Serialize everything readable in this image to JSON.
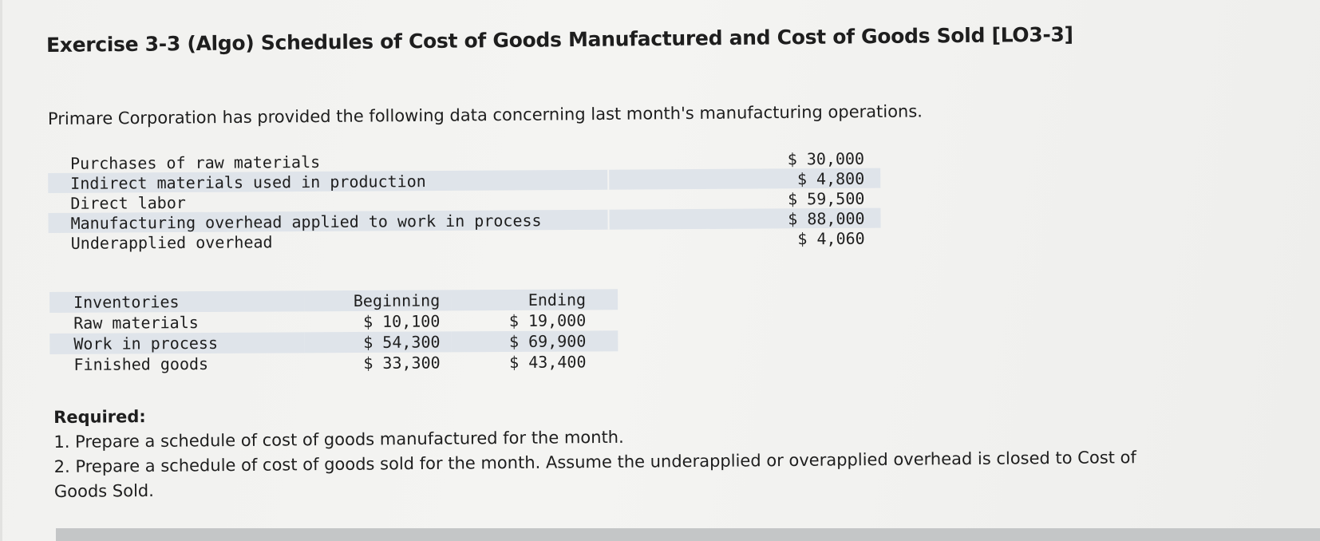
{
  "title": "Exercise 3-3 (Algo) Schedules of Cost of Goods Manufactured and Cost of Goods Sold [LO3-3]",
  "intro": "Primare Corporation has provided the following data concerning last month's manufacturing operations.",
  "data_rows": [
    {
      "label": "Purchases of raw materials",
      "amount": "$ 30,000"
    },
    {
      "label": "Indirect materials used in production",
      "amount": "$ 4,800"
    },
    {
      "label": "Direct labor",
      "amount": "$ 59,500"
    },
    {
      "label": "Manufacturing overhead applied to work in process",
      "amount": "$ 88,000"
    },
    {
      "label": "Underapplied overhead",
      "amount": "$ 4,060"
    }
  ],
  "inventories": {
    "headers": {
      "label": "Inventories",
      "beginning": "Beginning",
      "ending": "Ending"
    },
    "rows": [
      {
        "label": "Raw materials",
        "beginning": "$ 10,100",
        "ending": "$ 19,000"
      },
      {
        "label": "Work in process",
        "beginning": "$ 54,300",
        "ending": "$ 69,900"
      },
      {
        "label": "Finished goods",
        "beginning": "$ 33,300",
        "ending": "$ 43,400"
      }
    ]
  },
  "required": {
    "heading": "Required:",
    "item1": "1. Prepare a schedule of cost of goods manufactured for the month.",
    "item2": "2. Prepare a schedule of cost of goods sold for the month. Assume the underapplied or overapplied overhead is closed to Cost of",
    "item2_cont": "Goods Sold."
  }
}
